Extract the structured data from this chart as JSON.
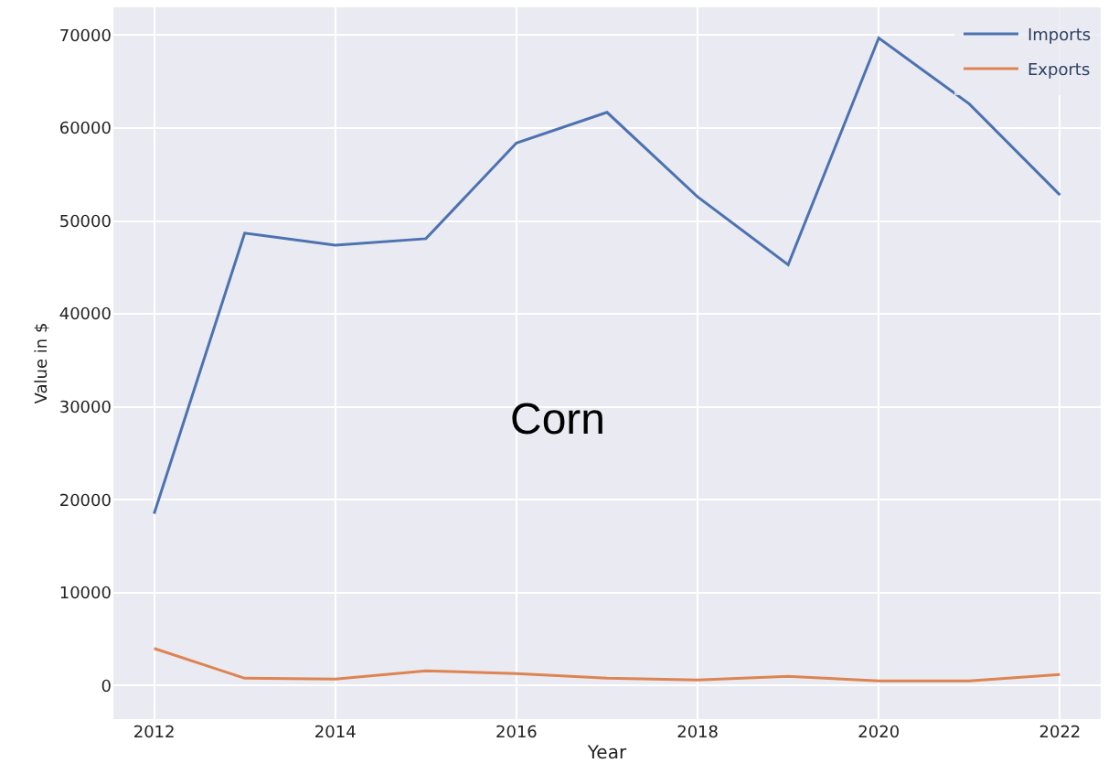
{
  "chart_data": {
    "type": "line",
    "xlabel": "Year",
    "ylabel": "Value in $",
    "x": [
      2012,
      2013,
      2014,
      2015,
      2016,
      2017,
      2018,
      2019,
      2020,
      2021,
      2022
    ],
    "series": [
      {
        "name": "Imports",
        "color": "#4c72b0",
        "values": [
          18500,
          48700,
          47400,
          48100,
          58400,
          61700,
          52600,
          45300,
          69700,
          62600,
          52800
        ]
      },
      {
        "name": "Exports",
        "color": "#dd8452",
        "values": [
          4000,
          800,
          700,
          1600,
          1300,
          800,
          600,
          1000,
          500,
          500,
          1200
        ]
      }
    ],
    "annotations": [
      "Corn"
    ],
    "xlim": [
      2011.55,
      2022.45
    ],
    "xticks": [
      2012,
      2014,
      2016,
      2018,
      2020,
      2022
    ],
    "ylim": [
      -3600,
      73000
    ],
    "yticks": [
      0,
      10000,
      20000,
      30000,
      40000,
      50000,
      60000,
      70000
    ],
    "grid": true,
    "legend": "top right",
    "marker": "none",
    "line_style": "solid"
  }
}
